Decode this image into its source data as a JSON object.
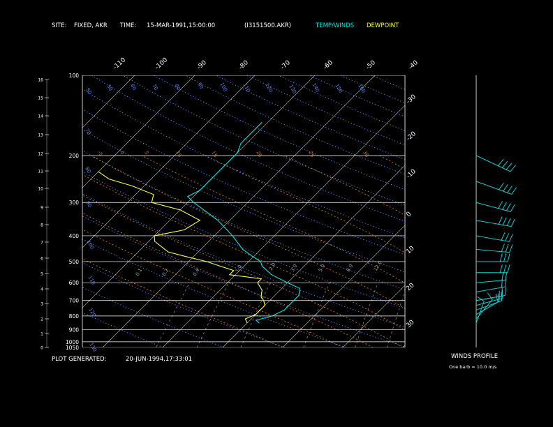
{
  "header": {
    "site_label": "SITE:",
    "site_value": "FIXED, AKR",
    "time_label": "TIME:",
    "time_value": "15-MAR-1991,15:00:00",
    "file_id": "(I3151500.AKR)",
    "legend_temp": "TEMP/WINDS",
    "legend_dew": "DEWPOINT"
  },
  "footer": {
    "plot_generated_label": "PLOT GENERATED:",
    "plot_generated_value": "20-JUN-1994,17:33:01"
  },
  "winds_panel": {
    "title": "WINDS PROFILE",
    "note": "One barb = 10.0 m/s"
  },
  "colors": {
    "background": "#000000",
    "temperature": "#00e5e5",
    "dewpoint": "#ffff33",
    "isobars": "#ffffff",
    "isotherms": "#cfcfcf",
    "dry_adiabats": "#5a8cff",
    "moist_adiabats": "#d8722a",
    "mixing_ratio": "#8a8a8a"
  },
  "chart_data": {
    "type": "skew-t",
    "pressure_levels": [
      100,
      200,
      300,
      400,
      500,
      600,
      700,
      800,
      900,
      1000,
      1050
    ],
    "height_km_ticks": [
      0,
      1,
      2,
      3,
      4,
      5,
      6,
      7,
      8,
      9,
      10,
      11,
      12,
      13,
      14,
      15,
      16
    ],
    "isotherm_labels_top": [
      "-110",
      "-100",
      "-90",
      "-80",
      "-70",
      "-60",
      "-50",
      "-40"
    ],
    "isotherm_labels_right": [
      "-30",
      "-20",
      "-10",
      "0",
      "10",
      "20",
      "30"
    ],
    "dry_adiabat_labels": [
      "50",
      "50",
      "60",
      "70",
      "80",
      "90",
      "100",
      "110",
      "120",
      "130",
      "140",
      "150",
      "160"
    ],
    "moist_adiabat_labels": [
      "-5",
      "0",
      "5",
      "10",
      "15",
      "20",
      "25"
    ],
    "mixing_ratio_labels": [
      "0.1",
      "0.2",
      "0.4",
      "1.0",
      "2.0",
      "3.0",
      "5.0",
      "8.0",
      "12.0"
    ],
    "temperature_profile": [
      {
        "p": 850,
        "t": -28
      },
      {
        "p": 830,
        "t": -29
      },
      {
        "p": 800,
        "t": -27
      },
      {
        "p": 760,
        "t": -26
      },
      {
        "p": 720,
        "t": -26
      },
      {
        "p": 700,
        "t": -26
      },
      {
        "p": 670,
        "t": -26
      },
      {
        "p": 630,
        "t": -27
      },
      {
        "p": 600,
        "t": -30
      },
      {
        "p": 560,
        "t": -34
      },
      {
        "p": 520,
        "t": -37
      },
      {
        "p": 500,
        "t": -38
      },
      {
        "p": 480,
        "t": -40
      },
      {
        "p": 450,
        "t": -43
      },
      {
        "p": 400,
        "t": -47
      },
      {
        "p": 350,
        "t": -52
      },
      {
        "p": 300,
        "t": -59
      },
      {
        "p": 285,
        "t": -61
      },
      {
        "p": 270,
        "t": -60
      },
      {
        "p": 250,
        "t": -60
      },
      {
        "p": 230,
        "t": -60
      },
      {
        "p": 210,
        "t": -60
      },
      {
        "p": 195,
        "t": -60
      },
      {
        "p": 180,
        "t": -61
      },
      {
        "p": 160,
        "t": -61
      },
      {
        "p": 150,
        "t": -61
      }
    ],
    "dewpoint_profile": [
      {
        "p": 850,
        "t": -30
      },
      {
        "p": 820,
        "t": -31
      },
      {
        "p": 790,
        "t": -30
      },
      {
        "p": 760,
        "t": -30
      },
      {
        "p": 730,
        "t": -30
      },
      {
        "p": 700,
        "t": -31
      },
      {
        "p": 680,
        "t": -32
      },
      {
        "p": 640,
        "t": -33
      },
      {
        "p": 600,
        "t": -35
      },
      {
        "p": 580,
        "t": -35
      },
      {
        "p": 560,
        "t": -41
      },
      {
        "p": 540,
        "t": -41
      },
      {
        "p": 520,
        "t": -44
      },
      {
        "p": 500,
        "t": -47
      },
      {
        "p": 480,
        "t": -51
      },
      {
        "p": 460,
        "t": -55
      },
      {
        "p": 420,
        "t": -59
      },
      {
        "p": 400,
        "t": -60
      },
      {
        "p": 380,
        "t": -56
      },
      {
        "p": 350,
        "t": -55
      },
      {
        "p": 320,
        "t": -60
      },
      {
        "p": 300,
        "t": -66
      },
      {
        "p": 280,
        "t": -67
      },
      {
        "p": 260,
        "t": -72
      },
      {
        "p": 245,
        "t": -77
      },
      {
        "p": 230,
        "t": -80
      }
    ],
    "wind_barbs": [
      {
        "p": 850,
        "dir": 340,
        "speed": 5
      },
      {
        "p": 820,
        "dir": 320,
        "speed": 10
      },
      {
        "p": 790,
        "dir": 300,
        "speed": 10
      },
      {
        "p": 760,
        "dir": 290,
        "speed": 15
      },
      {
        "p": 730,
        "dir": 285,
        "speed": 15
      },
      {
        "p": 700,
        "dir": 280,
        "speed": 20
      },
      {
        "p": 650,
        "dir": 280,
        "speed": 20
      },
      {
        "p": 600,
        "dir": 275,
        "speed": 20
      },
      {
        "p": 550,
        "dir": 270,
        "speed": 25
      },
      {
        "p": 500,
        "dir": 270,
        "speed": 25
      },
      {
        "p": 450,
        "dir": 265,
        "speed": 30
      },
      {
        "p": 400,
        "dir": 260,
        "speed": 30
      },
      {
        "p": 350,
        "dir": 260,
        "speed": 35
      },
      {
        "p": 300,
        "dir": 255,
        "speed": 35
      },
      {
        "p": 250,
        "dir": 250,
        "speed": 40
      },
      {
        "p": 200,
        "dir": 245,
        "speed": 40
      }
    ]
  }
}
